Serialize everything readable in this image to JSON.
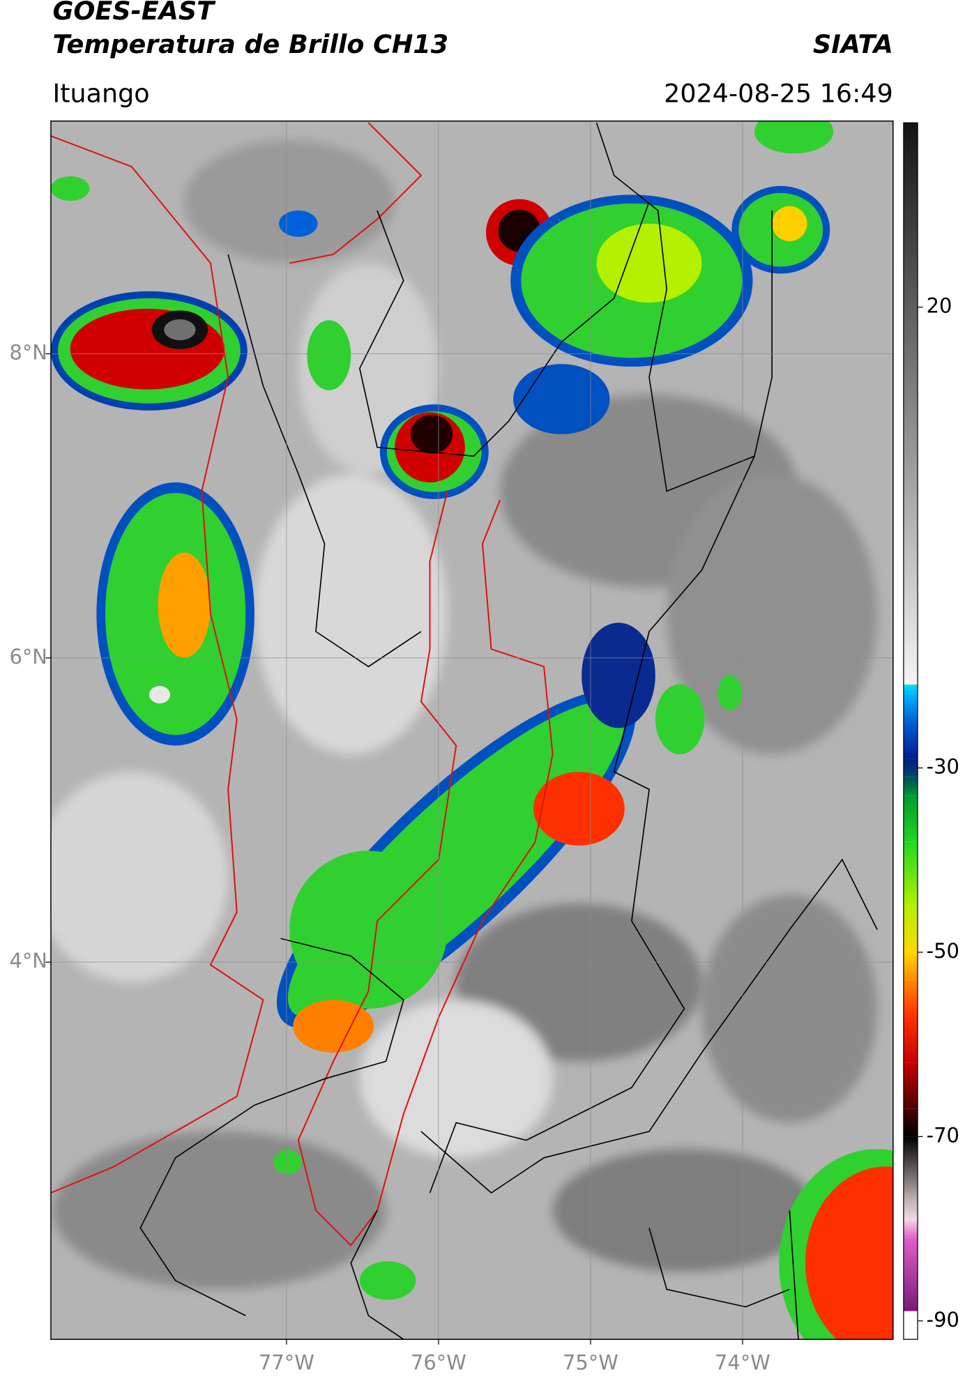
{
  "header": {
    "satellite": "GOES-EAST",
    "product": "Temperatura de Brillo CH13",
    "agency": "SIATA",
    "location": "Ituango",
    "timestamp": "2024-08-25 16:49"
  },
  "map": {
    "xlim": [
      -78.55,
      -73.01
    ],
    "ylim": [
      1.52,
      9.53
    ],
    "xticks": [
      {
        "value": -77,
        "label": "77°W"
      },
      {
        "value": -76,
        "label": "76°W"
      },
      {
        "value": -75,
        "label": "75°W"
      },
      {
        "value": -74,
        "label": "74°W"
      }
    ],
    "yticks": [
      {
        "value": 8,
        "label": "8°N"
      },
      {
        "value": 6,
        "label": "6°N"
      },
      {
        "value": 4,
        "label": "4°N"
      }
    ],
    "grid": true
  },
  "colorbar": {
    "range": [
      -92,
      40
    ],
    "ticks": [
      20,
      -30,
      -50,
      -70,
      -90
    ],
    "colormap": [
      {
        "value": -92,
        "color": "#ffffff"
      },
      {
        "value": -89,
        "color": "#ffffff"
      },
      {
        "value": -88.9,
        "color": "#7a1a7a"
      },
      {
        "value": -81,
        "color": "#e060c8"
      },
      {
        "value": -79,
        "color": "#f2d8e6"
      },
      {
        "value": -77,
        "color": "#c4b4b4"
      },
      {
        "value": -70,
        "color": "#000000"
      },
      {
        "value": -67,
        "color": "#4a0000"
      },
      {
        "value": -62,
        "color": "#c80000"
      },
      {
        "value": -57,
        "color": "#ff3000"
      },
      {
        "value": -53,
        "color": "#ff8a00"
      },
      {
        "value": -50,
        "color": "#ffd800"
      },
      {
        "value": -45,
        "color": "#b4f000"
      },
      {
        "value": -38,
        "color": "#20d820"
      },
      {
        "value": -33,
        "color": "#009a30"
      },
      {
        "value": -31,
        "color": "#004a60"
      },
      {
        "value": -29,
        "color": "#001c8c"
      },
      {
        "value": -25,
        "color": "#0060d8"
      },
      {
        "value": -22,
        "color": "#00b4ff"
      },
      {
        "value": -21,
        "color": "#00e0f0"
      },
      {
        "value": -20.9,
        "color": "#f4f4f4"
      },
      {
        "value": 40,
        "color": "#141414"
      }
    ]
  }
}
